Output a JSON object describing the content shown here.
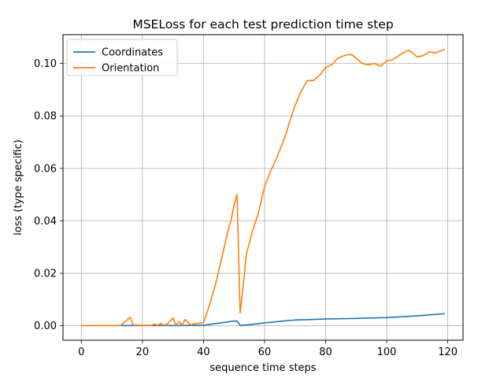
{
  "chart_data": {
    "type": "line",
    "title": "MSELoss for each test prediction time step",
    "xlabel": "sequence time steps",
    "ylabel": "loss (type specific)",
    "xlim": [
      -6,
      125
    ],
    "ylim": [
      -0.0055,
      0.111
    ],
    "xticks": [
      0,
      20,
      40,
      60,
      80,
      100,
      120
    ],
    "xtick_labels": [
      "0",
      "20",
      "40",
      "60",
      "80",
      "100",
      "120"
    ],
    "yticks": [
      0.0,
      0.02,
      0.04,
      0.06,
      0.08,
      0.1
    ],
    "ytick_labels": [
      "0.00",
      "0.02",
      "0.04",
      "0.06",
      "0.08",
      "0.10"
    ],
    "grid": true,
    "legend_position": "top-left",
    "series": [
      {
        "name": "Coordinates",
        "color": "#1f77b4",
        "x": [
          0,
          10,
          20,
          30,
          40,
          45,
          50,
          51,
          52,
          55,
          60,
          65,
          70,
          80,
          90,
          100,
          110,
          119
        ],
        "y": [
          0.0001,
          0.0001,
          0.0001,
          0.0001,
          0.0002,
          0.001,
          0.0018,
          0.0018,
          0.0001,
          0.0004,
          0.0011,
          0.0017,
          0.0022,
          0.0026,
          0.0028,
          0.0031,
          0.0038,
          0.0046
        ]
      },
      {
        "name": "Orientation",
        "color": "#ff7f0e",
        "x": [
          0,
          5,
          10,
          13,
          16,
          17,
          20,
          23,
          24,
          25,
          26,
          27,
          28,
          30,
          31,
          32,
          33,
          34,
          35,
          36,
          37,
          38,
          39,
          40,
          42,
          44,
          46,
          48,
          49,
          50,
          51,
          52,
          53,
          54,
          56,
          58,
          59,
          60,
          62,
          64,
          66,
          67,
          68,
          70,
          72,
          74,
          76,
          78,
          80,
          82,
          84,
          86,
          88,
          89,
          90,
          92,
          94,
          96,
          98,
          100,
          102,
          104,
          106,
          107,
          108,
          110,
          112,
          114,
          116,
          118,
          119
        ],
        "y": [
          0.0001,
          0.0001,
          0.0001,
          0.0002,
          0.0032,
          0.0003,
          0.0002,
          0.0002,
          0.0006,
          0.0002,
          0.0009,
          0.0002,
          0.0004,
          0.003,
          0.0002,
          0.0016,
          0.0003,
          0.0024,
          0.0012,
          0.0003,
          0.0008,
          0.0009,
          0.001,
          0.0012,
          0.008,
          0.016,
          0.026,
          0.036,
          0.04,
          0.046,
          0.05,
          0.0048,
          0.015,
          0.027,
          0.036,
          0.043,
          0.048,
          0.053,
          0.059,
          0.064,
          0.07,
          0.073,
          0.077,
          0.084,
          0.0895,
          0.0935,
          0.0935,
          0.0955,
          0.0985,
          0.0995,
          0.102,
          0.103,
          0.1035,
          0.103,
          0.102,
          0.1,
          0.0995,
          0.1,
          0.099,
          0.101,
          0.1015,
          0.103,
          0.1045,
          0.105,
          0.1045,
          0.1025,
          0.103,
          0.1045,
          0.104,
          0.105,
          0.1055
        ]
      }
    ]
  }
}
